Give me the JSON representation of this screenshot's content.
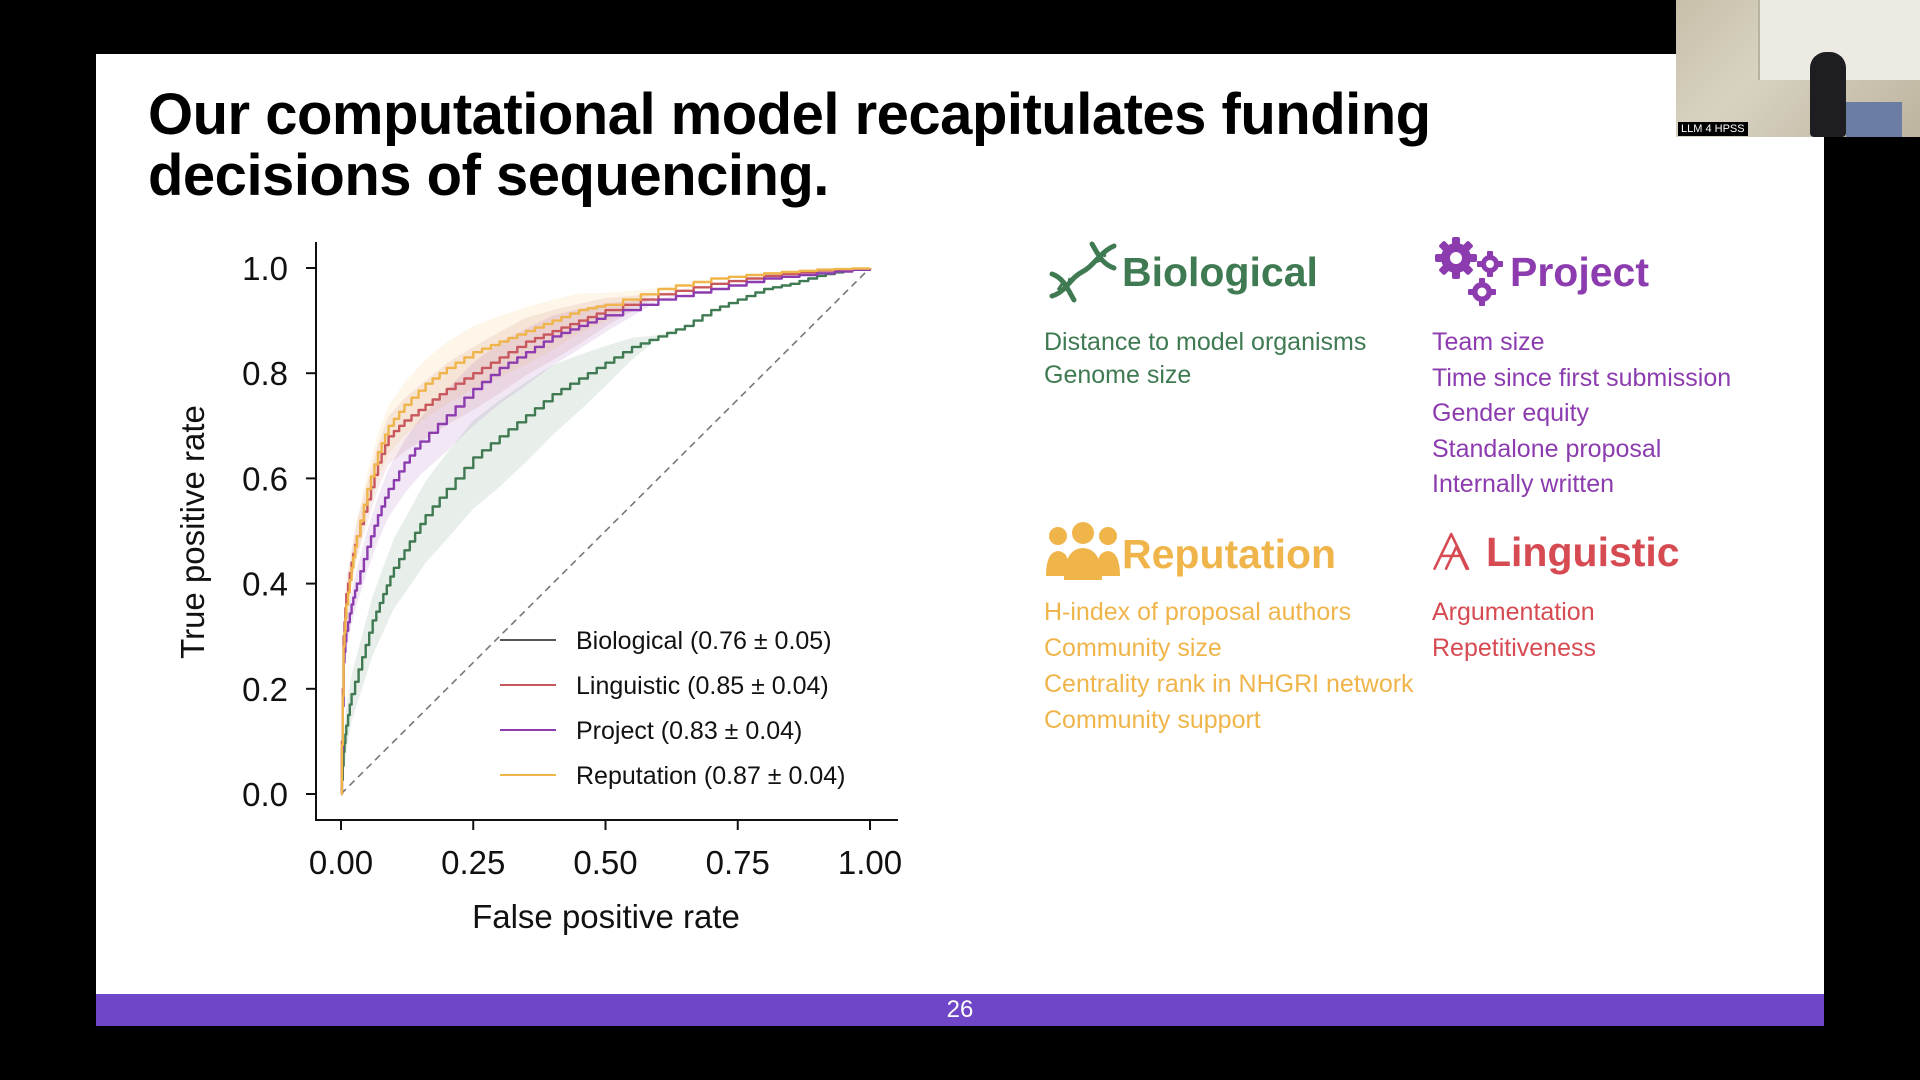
{
  "slide": {
    "title_line1": "Our computational model recapitulates funding",
    "title_line2": "decisions of sequencing.",
    "page_number": "26",
    "accent_color": "#7046c8"
  },
  "chart_data": {
    "type": "line",
    "xlabel": "False positive rate",
    "ylabel": "True positive rate",
    "xlim": [
      0,
      1
    ],
    "ylim": [
      0,
      1
    ],
    "xticks": [
      "0.00",
      "0.25",
      "0.50",
      "0.75",
      "1.00"
    ],
    "yticks": [
      "0.0",
      "0.2",
      "0.4",
      "0.6",
      "0.8",
      "1.0"
    ],
    "legend_position": "lower-right",
    "diagonal": true,
    "series": [
      {
        "name": "Biological (0.76 ± 0.05)",
        "color": "#3f7a52",
        "band": 0.07,
        "points": [
          [
            0,
            0
          ],
          [
            0.005,
            0.08
          ],
          [
            0.01,
            0.13
          ],
          [
            0.02,
            0.19
          ],
          [
            0.04,
            0.26
          ],
          [
            0.06,
            0.33
          ],
          [
            0.08,
            0.38
          ],
          [
            0.1,
            0.43
          ],
          [
            0.13,
            0.48
          ],
          [
            0.16,
            0.53
          ],
          [
            0.2,
            0.58
          ],
          [
            0.25,
            0.64
          ],
          [
            0.3,
            0.68
          ],
          [
            0.35,
            0.72
          ],
          [
            0.4,
            0.76
          ],
          [
            0.45,
            0.79
          ],
          [
            0.5,
            0.82
          ],
          [
            0.55,
            0.85
          ],
          [
            0.6,
            0.87
          ],
          [
            0.65,
            0.89
          ],
          [
            0.7,
            0.92
          ],
          [
            0.75,
            0.94
          ],
          [
            0.8,
            0.96
          ],
          [
            0.85,
            0.97
          ],
          [
            0.9,
            0.985
          ],
          [
            0.95,
            0.995
          ],
          [
            1,
            1
          ]
        ]
      },
      {
        "name": "Linguistic (0.85 ± 0.04)",
        "color": "#c9585e",
        "band": 0.05,
        "points": [
          [
            0,
            0
          ],
          [
            0.005,
            0.3
          ],
          [
            0.01,
            0.38
          ],
          [
            0.02,
            0.44
          ],
          [
            0.03,
            0.49
          ],
          [
            0.05,
            0.56
          ],
          [
            0.07,
            0.63
          ],
          [
            0.09,
            0.68
          ],
          [
            0.12,
            0.71
          ],
          [
            0.16,
            0.74
          ],
          [
            0.2,
            0.77
          ],
          [
            0.25,
            0.8
          ],
          [
            0.3,
            0.83
          ],
          [
            0.35,
            0.86
          ],
          [
            0.4,
            0.88
          ],
          [
            0.45,
            0.9
          ],
          [
            0.5,
            0.92
          ],
          [
            0.6,
            0.95
          ],
          [
            0.7,
            0.97
          ],
          [
            0.8,
            0.985
          ],
          [
            0.9,
            0.995
          ],
          [
            1,
            1
          ]
        ]
      },
      {
        "name": "Project (0.83 ± 0.04)",
        "color": "#8c3cae",
        "band": 0.05,
        "points": [
          [
            0,
            0
          ],
          [
            0.005,
            0.25
          ],
          [
            0.01,
            0.31
          ],
          [
            0.02,
            0.36
          ],
          [
            0.03,
            0.4
          ],
          [
            0.05,
            0.47
          ],
          [
            0.07,
            0.53
          ],
          [
            0.09,
            0.58
          ],
          [
            0.12,
            0.63
          ],
          [
            0.15,
            0.67
          ],
          [
            0.2,
            0.72
          ],
          [
            0.25,
            0.77
          ],
          [
            0.3,
            0.81
          ],
          [
            0.35,
            0.84
          ],
          [
            0.4,
            0.87
          ],
          [
            0.45,
            0.89
          ],
          [
            0.5,
            0.91
          ],
          [
            0.6,
            0.94
          ],
          [
            0.7,
            0.96
          ],
          [
            0.8,
            0.98
          ],
          [
            0.9,
            0.99
          ],
          [
            1,
            1
          ]
        ]
      },
      {
        "name": "Reputation (0.87 ± 0.04)",
        "color": "#f0b54a",
        "band": 0.05,
        "points": [
          [
            0,
            0
          ],
          [
            0.005,
            0.28
          ],
          [
            0.01,
            0.36
          ],
          [
            0.02,
            0.43
          ],
          [
            0.03,
            0.49
          ],
          [
            0.05,
            0.58
          ],
          [
            0.07,
            0.65
          ],
          [
            0.09,
            0.7
          ],
          [
            0.12,
            0.74
          ],
          [
            0.16,
            0.78
          ],
          [
            0.2,
            0.81
          ],
          [
            0.25,
            0.84
          ],
          [
            0.3,
            0.86
          ],
          [
            0.35,
            0.88
          ],
          [
            0.4,
            0.9
          ],
          [
            0.45,
            0.92
          ],
          [
            0.5,
            0.93
          ],
          [
            0.6,
            0.96
          ],
          [
            0.7,
            0.98
          ],
          [
            0.8,
            0.99
          ],
          [
            0.9,
            0.997
          ],
          [
            1,
            1
          ]
        ]
      }
    ]
  },
  "categories": {
    "biological": {
      "title": "Biological",
      "icon": "dna-icon",
      "color": "#3f7a52",
      "items": [
        "Distance to model organisms",
        "Genome size"
      ]
    },
    "project": {
      "title": "Project",
      "icon": "gears-icon",
      "color": "#8c3cae",
      "items": [
        "Team size",
        "Time since first submission",
        "Gender equity",
        "Standalone proposal",
        "Internally written"
      ]
    },
    "reputation": {
      "title": "Reputation",
      "icon": "people-icon",
      "color": "#f0b54a",
      "items": [
        "H-index of proposal authors",
        "Community size",
        "Centrality rank in NHGRI network",
        "Community support"
      ]
    },
    "linguistic": {
      "title": "Linguistic",
      "icon": "text-a-icon",
      "color": "#d64a52",
      "items": [
        "Argumentation",
        "Repetitiveness"
      ]
    }
  },
  "webcam": {
    "label": "LLM 4 HPSS"
  }
}
